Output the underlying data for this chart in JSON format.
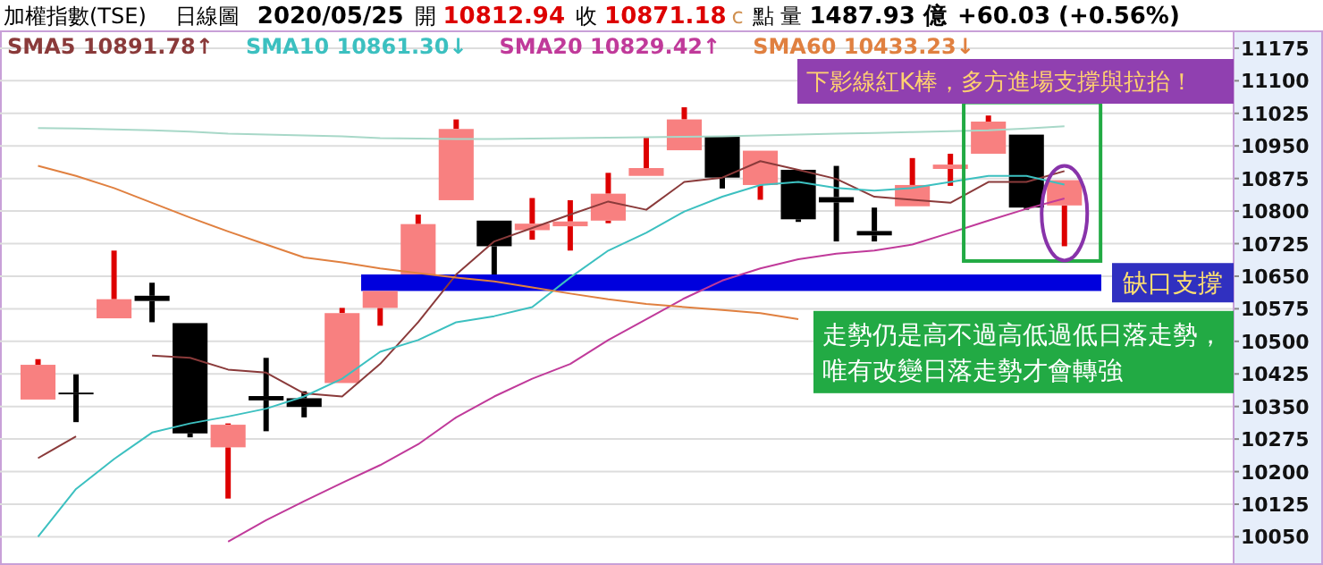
{
  "chart_data": {
    "type": "candlestick",
    "title": "加權指數(TSE)",
    "subtitle": "日線圖",
    "categories": [
      null,
      null,
      null,
      null,
      null,
      null,
      null,
      null,
      null,
      null,
      null,
      null,
      null,
      null,
      null,
      null,
      null,
      null,
      null,
      null,
      null,
      null,
      null,
      null,
      null,
      null,
      null,
      null
    ],
    "ohlc": [
      [
        10366,
        10459,
        10366,
        10446
      ],
      [
        10382,
        10424,
        10314,
        10378
      ],
      [
        10553,
        10709,
        10553,
        10597
      ],
      [
        10605,
        10635,
        10544,
        10593
      ],
      [
        10542,
        10542,
        10279,
        10288
      ],
      [
        10256,
        10311,
        10138,
        10308
      ],
      [
        10374,
        10462,
        10293,
        10364
      ],
      [
        10369,
        10385,
        10325,
        10349
      ],
      [
        10404,
        10577,
        10404,
        10565
      ],
      [
        10577,
        10616,
        10536,
        10616
      ],
      [
        10654,
        10792,
        10654,
        10770
      ],
      [
        10825,
        11011,
        10825,
        10989
      ],
      [
        10778,
        10778,
        10654,
        10719
      ],
      [
        10756,
        10830,
        10734,
        10771
      ],
      [
        10765,
        10825,
        10709,
        10776
      ],
      [
        10778,
        10888,
        10772,
        10840
      ],
      [
        10881,
        10970,
        10881,
        10899
      ],
      [
        10940,
        11039,
        10940,
        11011
      ],
      [
        10973,
        10973,
        10852,
        10877
      ],
      [
        10860,
        10939,
        10826,
        10939
      ],
      [
        10895,
        10895,
        10775,
        10781
      ],
      [
        10832,
        10904,
        10730,
        10820
      ],
      [
        10754,
        10808,
        10730,
        10744
      ],
      [
        10811,
        10922,
        10811,
        10860
      ],
      [
        10897,
        10932,
        10858,
        10907
      ],
      [
        10932,
        11020,
        10932,
        11006
      ],
      [
        10976,
        10976,
        10803,
        10808
      ],
      [
        10812.94,
        10871.18,
        10719,
        10871.18
      ]
    ],
    "series": [
      {
        "type": "line",
        "name": "SMA5 10891.78↑",
        "color": "#8a3a3a",
        "values": [
          10231,
          10281,
          null,
          10467,
          10462,
          10435,
          10428,
          10380,
          10373,
          10448,
          10544,
          10654,
          10730,
          10761,
          10792,
          10822,
          10803,
          10867,
          10877,
          10915,
          10895,
          10874,
          10833,
          10826,
          10819,
          10867,
          10867,
          10892
        ]
      },
      {
        "type": "line",
        "name": "SMA10 10861.30↓",
        "color": "#3cc0c0",
        "values": [
          10050,
          10160,
          10229,
          10290,
          10311,
          10327,
          10345,
          10373,
          10414,
          10476,
          10503,
          10544,
          10558,
          10579,
          10647,
          10709,
          10750,
          10799,
          10833,
          10860,
          10867,
          10853,
          10847,
          10853,
          10867,
          10881,
          10881,
          10861
        ]
      },
      {
        "type": "line",
        "name": "SMA20 10829.42↑",
        "color": "#c03a9a",
        "values": [
          null,
          null,
          null,
          null,
          null,
          10039,
          10088,
          10132,
          10174,
          10215,
          10263,
          10325,
          10373,
          10414,
          10448,
          10503,
          10551,
          10599,
          10640,
          10668,
          10689,
          10702,
          10709,
          10723,
          10750,
          10778,
          10805,
          10829
        ]
      },
      {
        "type": "line",
        "name": "SMA60 10433.23↓",
        "color": "#e08040",
        "values": [
          10904,
          10881,
          10853,
          10819,
          10785,
          10753,
          10723,
          10693,
          10682,
          10668,
          10657,
          10647,
          10638,
          10624,
          10610,
          10597,
          10586,
          10579,
          10572,
          10565,
          10551,
          null,
          null,
          null,
          null,
          null,
          null,
          null
        ]
      },
      {
        "type": "line",
        "color": "#a8d8c8",
        "values": [
          10991,
          10990,
          10988,
          10986,
          10983,
          10978,
          10976,
          10974,
          10972,
          10968,
          10967,
          10966,
          10966,
          10967,
          10968,
          10969,
          10970,
          10971,
          10972,
          10974,
          10976,
          10978,
          10980,
          10982,
          10984,
          10986,
          10990,
          10995
        ]
      }
    ],
    "ylim": [
      9985,
      11216
    ],
    "yticks": [
      10050,
      10125,
      10200,
      10275,
      10350,
      10425,
      10500,
      10575,
      10650,
      10725,
      10800,
      10875,
      10950,
      11025,
      11100,
      11175
    ],
    "grid": "y",
    "legend": "top",
    "bands": [
      {
        "axis": "y",
        "from": 10616,
        "to": 10654,
        "label": "缺口支撐",
        "color": "#0000dd"
      }
    ],
    "annotations": [
      "2020/05/25",
      "開",
      "10812.94",
      "收",
      "10871.18",
      "c",
      "點 量",
      "1487.93 億",
      "+60.03 (+0.56%)",
      "下影線紅K棒，多方進場支撐與拉抬！",
      "走勢仍是高不過高低過低日落走勢，唯有改變日落走勢才會轉強"
    ]
  }
}
